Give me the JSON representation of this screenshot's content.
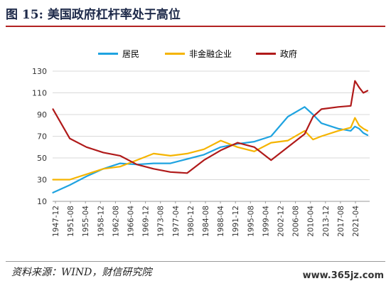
{
  "header": {
    "figure_label": "图 15:",
    "figure_title": "美国政府杠杆率处于高位"
  },
  "footer": {
    "source": "资料来源：WIND，财信研究院",
    "watermark": "www.365jz.com"
  },
  "chart_data": {
    "type": "line",
    "ylim": [
      10,
      130
    ],
    "yticks": [
      10,
      30,
      50,
      70,
      90,
      110,
      130
    ],
    "xlim": [
      1947.92,
      2023.5
    ],
    "x_tick_labels": [
      "1947-12",
      "1951-08",
      "1955-04",
      "1958-12",
      "1962-08",
      "1966-04",
      "1969-12",
      "1973-08",
      "1977-04",
      "1980-12",
      "1984-08",
      "1988-04",
      "1991-12",
      "1995-08",
      "1999-04",
      "2002-12",
      "2006-08",
      "2010-04",
      "2013-12",
      "2017-08",
      "2021-04"
    ],
    "grid": true,
    "legend_position": "top",
    "x": [
      1948,
      1952,
      1956,
      1960,
      1964,
      1968,
      1972,
      1976,
      1980,
      1984,
      1988,
      1992,
      1996,
      2000,
      2004,
      2008,
      2010,
      2012,
      2016,
      2019,
      2020,
      2021,
      2022,
      2023
    ],
    "series": [
      {
        "name": "居民",
        "color": "#1fa3e0",
        "values": [
          18,
          25,
          33,
          40,
          45,
          44,
          45,
          45,
          49,
          53,
          60,
          63,
          65,
          70,
          88,
          97,
          90,
          82,
          77,
          75,
          79,
          77,
          73,
          71
        ]
      },
      {
        "name": "非金融企业",
        "color": "#f5b400",
        "values": [
          30,
          30,
          35,
          40,
          42,
          48,
          54,
          52,
          54,
          58,
          66,
          60,
          56,
          64,
          66,
          75,
          67,
          70,
          75,
          78,
          87,
          80,
          77,
          75
        ]
      },
      {
        "name": "政府",
        "color": "#b01a1a",
        "values": [
          95,
          68,
          60,
          55,
          52,
          44,
          40,
          37,
          36,
          48,
          57,
          64,
          60,
          48,
          60,
          72,
          88,
          95,
          97,
          98,
          121,
          115,
          110,
          112
        ]
      }
    ]
  }
}
